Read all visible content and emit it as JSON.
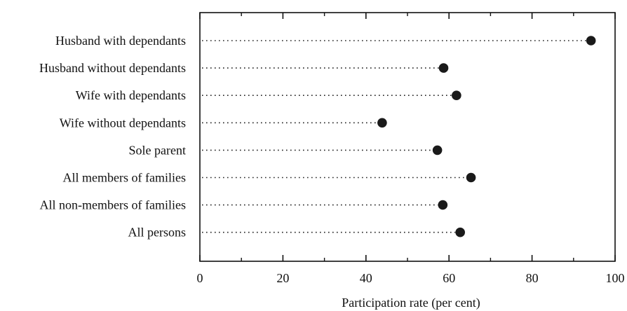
{
  "chart_data": {
    "type": "dot",
    "categories": [
      "Husband with dependants",
      "Husband without dependants",
      "Wife with dependants",
      "Wife without dependants",
      "Sole parent",
      "All members of families",
      "All non-members of families",
      "All persons"
    ],
    "values": [
      94.2,
      58.7,
      61.8,
      43.9,
      57.2,
      65.3,
      58.5,
      62.7
    ],
    "xlabel": "Participation rate (per cent)",
    "ylabel": "",
    "xlim": [
      0,
      100
    ],
    "xticks": [
      0,
      20,
      40,
      60,
      80,
      100
    ],
    "grid": false,
    "colors": {
      "dot": "#1a1a1a",
      "leader": "#222222",
      "frame": "#111111"
    }
  }
}
